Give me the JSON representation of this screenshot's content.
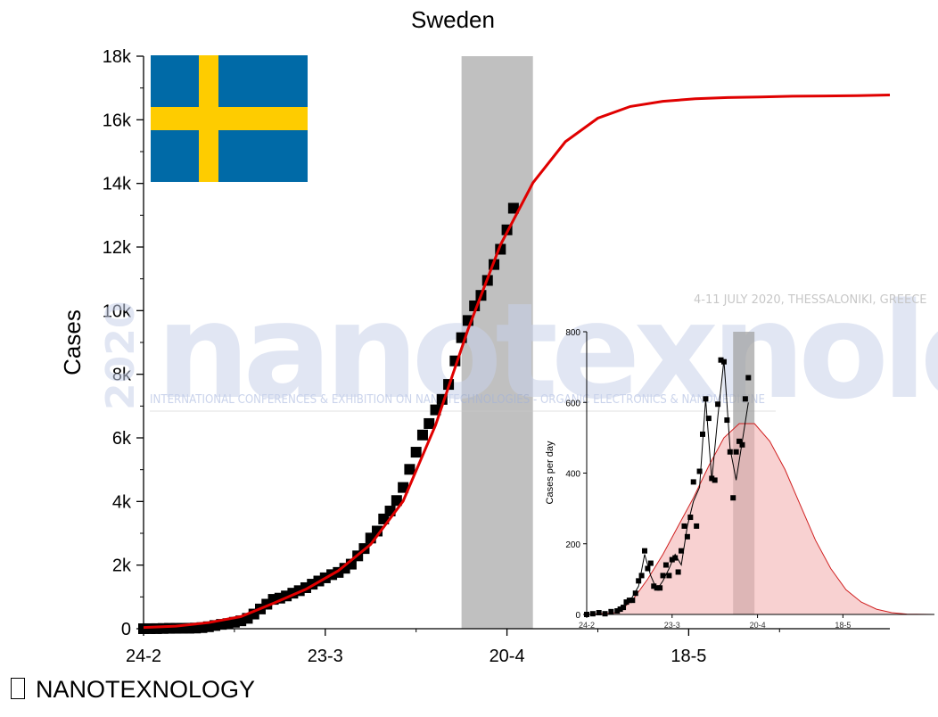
{
  "main_chart": {
    "type": "scatter",
    "title": "Sweden",
    "ylabel": "Cases",
    "xlabel": "",
    "x_ticks": [
      "24-2",
      "23-3",
      "20-4",
      "18-5"
    ],
    "y_ticks": [
      "0",
      "2k",
      "4k",
      "6k",
      "8k",
      "10k",
      "12k",
      "14k",
      "16k",
      "18k"
    ],
    "xlim_days": [
      0,
      115
    ],
    "ylim": [
      0,
      18000
    ],
    "highlight_days": [
      49,
      60
    ],
    "points": [
      [
        0,
        0
      ],
      [
        1,
        1
      ],
      [
        2,
        2
      ],
      [
        3,
        7
      ],
      [
        4,
        12
      ],
      [
        5,
        13
      ],
      [
        6,
        14
      ],
      [
        7,
        15
      ],
      [
        8,
        21
      ],
      [
        9,
        35
      ],
      [
        10,
        62
      ],
      [
        11,
        101
      ],
      [
        12,
        137
      ],
      [
        13,
        161
      ],
      [
        14,
        203
      ],
      [
        15,
        248
      ],
      [
        16,
        326
      ],
      [
        17,
        461
      ],
      [
        18,
        620
      ],
      [
        19,
        771
      ],
      [
        20,
        923
      ],
      [
        21,
        961
      ],
      [
        22,
        1030
      ],
      [
        23,
        1117
      ],
      [
        24,
        1196
      ],
      [
        25,
        1290
      ],
      [
        26,
        1400
      ],
      [
        27,
        1500
      ],
      [
        28,
        1600
      ],
      [
        29,
        1700
      ],
      [
        30,
        1770
      ],
      [
        31,
        1900
      ],
      [
        32,
        2030
      ],
      [
        33,
        2290
      ],
      [
        34,
        2520
      ],
      [
        35,
        2850
      ],
      [
        36,
        3070
      ],
      [
        37,
        3450
      ],
      [
        38,
        3700
      ],
      [
        39,
        4030
      ],
      [
        40,
        4440
      ],
      [
        41,
        5010
      ],
      [
        42,
        5550
      ],
      [
        43,
        6090
      ],
      [
        44,
        6450
      ],
      [
        45,
        6880
      ],
      [
        46,
        7210
      ],
      [
        47,
        7680
      ],
      [
        48,
        8420
      ],
      [
        49,
        9150
      ],
      [
        50,
        9690
      ],
      [
        51,
        10150
      ],
      [
        52,
        10480
      ],
      [
        53,
        10950
      ],
      [
        54,
        11450
      ],
      [
        55,
        11930
      ],
      [
        56,
        12540
      ],
      [
        57,
        13220
      ]
    ],
    "fit": [
      [
        0,
        40
      ],
      [
        5,
        80
      ],
      [
        10,
        190
      ],
      [
        15,
        380
      ],
      [
        20,
        800
      ],
      [
        25,
        1240
      ],
      [
        30,
        1820
      ],
      [
        35,
        2650
      ],
      [
        40,
        4010
      ],
      [
        45,
        6400
      ],
      [
        50,
        9410
      ],
      [
        55,
        12070
      ],
      [
        60,
        14020
      ],
      [
        65,
        15310
      ],
      [
        70,
        16050
      ],
      [
        75,
        16420
      ],
      [
        80,
        16580
      ],
      [
        85,
        16660
      ],
      [
        90,
        16700
      ],
      [
        95,
        16720
      ],
      [
        100,
        16740
      ],
      [
        105,
        16750
      ],
      [
        110,
        16760
      ],
      [
        115,
        16780
      ]
    ]
  },
  "inset_chart": {
    "type": "scatter",
    "ylabel": "Cases per day",
    "x_ticks": [
      "24-2",
      "23-3",
      "20-4",
      "18-5"
    ],
    "y_ticks": [
      "0",
      "200",
      "400",
      "600",
      "800"
    ],
    "xlim_days": [
      0,
      114
    ],
    "ylim": [
      0,
      800
    ],
    "highlight_days": [
      48,
      55
    ],
    "points": [
      [
        0,
        0
      ],
      [
        2,
        2
      ],
      [
        4,
        5
      ],
      [
        6,
        2
      ],
      [
        8,
        8
      ],
      [
        10,
        10
      ],
      [
        11,
        15
      ],
      [
        12,
        20
      ],
      [
        13,
        35
      ],
      [
        14,
        40
      ],
      [
        15,
        40
      ],
      [
        16,
        60
      ],
      [
        17,
        95
      ],
      [
        18,
        110
      ],
      [
        19,
        180
      ],
      [
        20,
        130
      ],
      [
        21,
        145
      ],
      [
        22,
        80
      ],
      [
        23,
        75
      ],
      [
        24,
        75
      ],
      [
        25,
        110
      ],
      [
        26,
        140
      ],
      [
        27,
        110
      ],
      [
        28,
        155
      ],
      [
        29,
        160
      ],
      [
        30,
        120
      ],
      [
        31,
        180
      ],
      [
        32,
        250
      ],
      [
        33,
        220
      ],
      [
        34,
        275
      ],
      [
        35,
        375
      ],
      [
        36,
        250
      ],
      [
        37,
        405
      ],
      [
        38,
        510
      ],
      [
        39,
        610
      ],
      [
        40,
        555
      ],
      [
        41,
        385
      ],
      [
        42,
        380
      ],
      [
        43,
        595
      ],
      [
        44,
        720
      ],
      [
        45,
        715
      ],
      [
        46,
        550
      ],
      [
        47,
        460
      ],
      [
        48,
        330
      ],
      [
        49,
        460
      ],
      [
        50,
        490
      ],
      [
        51,
        480
      ],
      [
        52,
        610
      ],
      [
        53,
        670
      ]
    ],
    "fit": [
      [
        0,
        0
      ],
      [
        10,
        5
      ],
      [
        15,
        40
      ],
      [
        20,
        100
      ],
      [
        25,
        170
      ],
      [
        30,
        250
      ],
      [
        35,
        330
      ],
      [
        40,
        420
      ],
      [
        45,
        500
      ],
      [
        50,
        540
      ],
      [
        55,
        540
      ],
      [
        60,
        490
      ],
      [
        65,
        410
      ],
      [
        70,
        310
      ],
      [
        75,
        210
      ],
      [
        80,
        130
      ],
      [
        85,
        70
      ],
      [
        90,
        35
      ],
      [
        95,
        15
      ],
      [
        100,
        5
      ],
      [
        105,
        1
      ],
      [
        114,
        0
      ]
    ],
    "detail": [
      [
        10,
        5
      ],
      [
        14,
        35
      ],
      [
        17,
        80
      ],
      [
        19,
        170
      ],
      [
        21,
        110
      ],
      [
        23,
        70
      ],
      [
        25,
        95
      ],
      [
        27,
        130
      ],
      [
        29,
        170
      ],
      [
        31,
        140
      ],
      [
        33,
        250
      ],
      [
        35,
        320
      ],
      [
        37,
        360
      ],
      [
        39,
        610
      ],
      [
        41,
        380
      ],
      [
        43,
        560
      ],
      [
        45,
        720
      ],
      [
        47,
        470
      ],
      [
        49,
        380
      ],
      [
        51,
        490
      ],
      [
        53,
        600
      ]
    ]
  },
  "watermark": {
    "big_word": "nanotexnology",
    "year": "2020",
    "event": "4-11 JULY 2020, THESSALONIKI, GREECE",
    "tagline": "INTERNATIONAL CONFERENCES & EXHIBITION ON NANOTECHNOLOGIES - ORGANIC ELECTRONICS & NANOMEDICINE"
  },
  "flag": {
    "field_color": "#006AA7",
    "cross_color": "#FECC00"
  },
  "colors": {
    "fit": "#e00000",
    "marker": "#000000",
    "highlight": "#9e9e9e",
    "inset_fill": "#f4b3b3"
  },
  "footer": {
    "label": "NANOTEXNOLOGY"
  }
}
